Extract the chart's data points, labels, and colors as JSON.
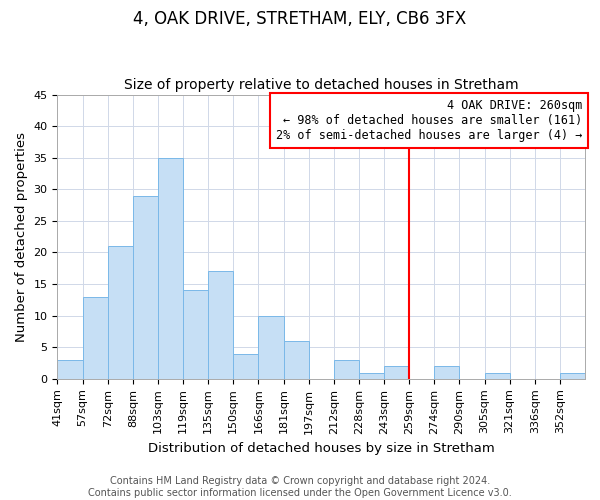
{
  "title": "4, OAK DRIVE, STRETHAM, ELY, CB6 3FX",
  "subtitle": "Size of property relative to detached houses in Stretham",
  "xlabel": "Distribution of detached houses by size in Stretham",
  "ylabel": "Number of detached properties",
  "footer_line1": "Contains HM Land Registry data © Crown copyright and database right 2024.",
  "footer_line2": "Contains public sector information licensed under the Open Government Licence v3.0.",
  "bin_labels": [
    "41sqm",
    "57sqm",
    "72sqm",
    "88sqm",
    "103sqm",
    "119sqm",
    "135sqm",
    "150sqm",
    "166sqm",
    "181sqm",
    "197sqm",
    "212sqm",
    "228sqm",
    "243sqm",
    "259sqm",
    "274sqm",
    "290sqm",
    "305sqm",
    "321sqm",
    "336sqm",
    "352sqm"
  ],
  "bar_values": [
    3,
    13,
    21,
    29,
    35,
    14,
    17,
    4,
    10,
    6,
    0,
    3,
    1,
    2,
    0,
    2,
    0,
    1,
    0,
    0,
    1
  ],
  "bar_color": "#c6dff5",
  "bar_edge_color": "#7ab8e8",
  "grid_color": "#d0d8e8",
  "vline_x_index": 14,
  "vline_color": "red",
  "annotation_title": "4 OAK DRIVE: 260sqm",
  "annotation_line2": "← 98% of detached houses are smaller (161)",
  "annotation_line3": "2% of semi-detached houses are larger (4) →",
  "annotation_box_edge_color": "red",
  "annotation_box_face_color": "white",
  "ylim": [
    0,
    45
  ],
  "yticks": [
    0,
    5,
    10,
    15,
    20,
    25,
    30,
    35,
    40,
    45
  ],
  "title_fontsize": 12,
  "subtitle_fontsize": 10,
  "label_fontsize": 9.5,
  "tick_fontsize": 8,
  "footer_fontsize": 7,
  "annotation_fontsize": 8.5
}
